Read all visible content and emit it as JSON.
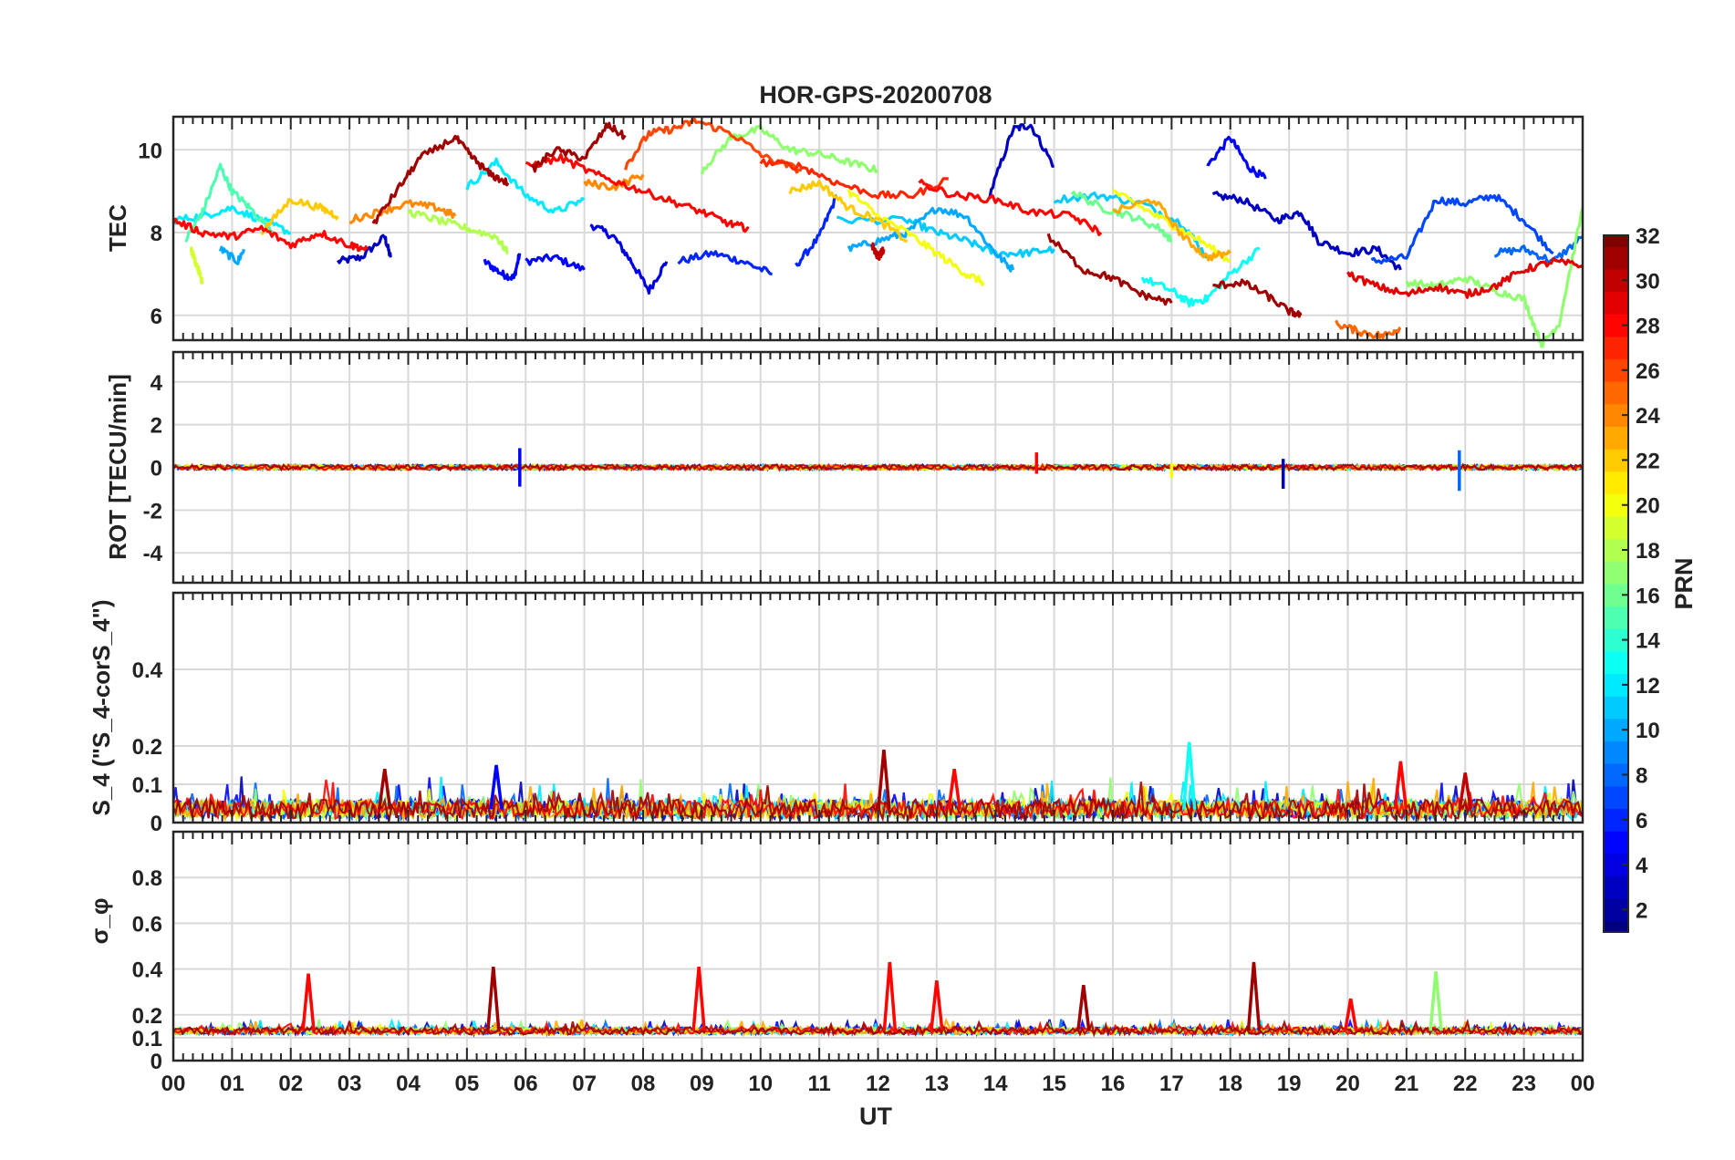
{
  "figure": {
    "title": "HOR-GPS-20200708",
    "xlabel": "UT",
    "x_ticks": [
      "00",
      "01",
      "02",
      "03",
      "04",
      "05",
      "06",
      "07",
      "08",
      "09",
      "10",
      "11",
      "12",
      "13",
      "14",
      "15",
      "16",
      "17",
      "18",
      "19",
      "20",
      "21",
      "22",
      "23",
      "00"
    ],
    "colorbar": {
      "label": "PRN",
      "ticks": [
        "2",
        "4",
        "6",
        "8",
        "10",
        "12",
        "14",
        "16",
        "18",
        "20",
        "22",
        "24",
        "26",
        "28",
        "30",
        "32"
      ],
      "range": [
        1,
        32
      ],
      "colormap": "jet"
    }
  },
  "chart_data": [
    {
      "type": "line",
      "panel": "TEC",
      "ylabel": "TEC",
      "ylim": [
        5.4,
        10.8
      ],
      "y_ticks": [
        "6",
        "8",
        "10"
      ],
      "xlim": [
        0,
        24
      ],
      "grid": true,
      "series": [
        {
          "prn": 3,
          "x": [
            2.8,
            3.2,
            3.6,
            3.7
          ],
          "y": [
            7.3,
            7.4,
            7.9,
            7.4
          ]
        },
        {
          "prn": 5,
          "x": [
            5.3,
            5.6,
            5.8,
            5.9
          ],
          "y": [
            7.3,
            7.0,
            6.9,
            7.5
          ]
        },
        {
          "prn": 5,
          "x": [
            6.0,
            6.5,
            7.0
          ],
          "y": [
            7.3,
            7.4,
            7.1
          ]
        },
        {
          "prn": 4,
          "x": [
            7.1,
            7.5,
            7.8,
            8.1,
            8.4
          ],
          "y": [
            8.2,
            7.9,
            7.3,
            6.6,
            7.3
          ]
        },
        {
          "prn": 6,
          "x": [
            8.6,
            9.2,
            9.7,
            10.2
          ],
          "y": [
            7.3,
            7.5,
            7.3,
            7.0
          ]
        },
        {
          "prn": 6,
          "x": [
            10.6,
            11.0,
            11.3
          ],
          "y": [
            7.2,
            7.9,
            8.9
          ]
        },
        {
          "prn": 3,
          "x": [
            13.9,
            14.3,
            14.6,
            15.0
          ],
          "y": [
            8.9,
            10.5,
            10.6,
            9.6
          ]
        },
        {
          "prn": 5,
          "x": [
            17.6,
            18.0,
            18.3,
            18.6
          ],
          "y": [
            9.6,
            10.3,
            9.6,
            9.3
          ]
        },
        {
          "prn": 3,
          "x": [
            17.7,
            18.2,
            18.8,
            19.2,
            19.5,
            20.0,
            20.5,
            20.9
          ],
          "y": [
            8.9,
            8.8,
            8.3,
            8.5,
            7.8,
            7.5,
            7.6,
            7.1
          ]
        },
        {
          "prn": 7,
          "x": [
            20.4,
            21.0,
            21.5,
            22.0,
            22.5,
            23.0,
            23.5
          ],
          "y": [
            7.3,
            7.4,
            8.8,
            8.7,
            8.9,
            8.3,
            7.5
          ]
        },
        {
          "prn": 8,
          "x": [
            22.5,
            23.0,
            23.5,
            24.0
          ],
          "y": [
            7.5,
            7.6,
            7.3,
            7.9
          ]
        },
        {
          "prn": 10,
          "x": [
            0.8,
            1.1,
            1.2
          ],
          "y": [
            7.6,
            7.3,
            7.6
          ]
        },
        {
          "prn": 11,
          "x": [
            11.3,
            12.5,
            13.0,
            13.5,
            14.0,
            14.5,
            15.0
          ],
          "y": [
            8.3,
            8.3,
            8.0,
            7.8,
            7.5,
            7.5,
            7.6
          ]
        },
        {
          "prn": 10,
          "x": [
            11.5,
            12.0,
            12.5,
            13.0,
            13.5,
            14.0,
            14.3
          ],
          "y": [
            7.6,
            7.8,
            8.0,
            8.6,
            8.4,
            7.5,
            7.1
          ]
        },
        {
          "prn": 11,
          "x": [
            15.0,
            15.8,
            16.5,
            17.2,
            17.6
          ],
          "y": [
            8.8,
            8.9,
            8.7,
            8.2,
            7.4
          ]
        },
        {
          "prn": 12,
          "x": [
            5.0,
            5.5,
            6.0,
            6.5,
            7.0
          ],
          "y": [
            9.1,
            9.7,
            8.9,
            8.5,
            8.8
          ]
        },
        {
          "prn": 12,
          "x": [
            0.0,
            0.5,
            1.0,
            1.5,
            2.0
          ],
          "y": [
            8.3,
            8.4,
            8.6,
            8.3,
            8.0
          ]
        },
        {
          "prn": 13,
          "x": [
            16.5,
            17.0,
            17.3,
            17.6,
            18.0,
            18.5
          ],
          "y": [
            6.9,
            6.6,
            6.3,
            6.4,
            7.0,
            7.6
          ]
        },
        {
          "prn": 15,
          "x": [
            0.2,
            0.5,
            0.8,
            1.0,
            1.3,
            1.7
          ],
          "y": [
            7.8,
            8.5,
            9.6,
            9.0,
            8.6,
            8.0
          ]
        },
        {
          "prn": 17,
          "x": [
            9.0,
            9.5,
            10.0,
            10.5,
            11.0,
            11.5,
            12.0
          ],
          "y": [
            9.5,
            10.3,
            10.5,
            10.0,
            9.9,
            9.7,
            9.5
          ]
        },
        {
          "prn": 16,
          "x": [
            15.3,
            15.8,
            16.3,
            16.8,
            17.0
          ],
          "y": [
            9.0,
            8.6,
            8.4,
            8.1,
            7.8
          ]
        },
        {
          "prn": 17,
          "x": [
            21.0,
            21.5,
            22.0,
            22.5,
            23.0,
            23.3,
            23.6,
            24.0
          ],
          "y": [
            6.8,
            6.7,
            6.9,
            6.6,
            6.4,
            5.3,
            5.8,
            8.6
          ]
        },
        {
          "prn": 18,
          "x": [
            4.0,
            4.5,
            5.0,
            5.5,
            5.7
          ],
          "y": [
            8.5,
            8.3,
            8.1,
            7.9,
            7.5
          ]
        },
        {
          "prn": 19,
          "x": [
            0.3,
            0.4,
            0.5
          ],
          "y": [
            7.6,
            7.2,
            6.8
          ]
        },
        {
          "prn": 20,
          "x": [
            11.5,
            12.0,
            12.5,
            13.0,
            13.5,
            13.8
          ],
          "y": [
            9.0,
            8.4,
            8.0,
            7.5,
            7.0,
            6.8
          ]
        },
        {
          "prn": 20,
          "x": [
            16.0,
            16.5,
            17.0,
            17.5,
            18.0
          ],
          "y": [
            9.0,
            8.6,
            8.2,
            7.8,
            7.3
          ]
        },
        {
          "prn": 22,
          "x": [
            1.5,
            2.0,
            2.5,
            2.8
          ],
          "y": [
            8.0,
            8.8,
            8.6,
            8.4
          ]
        },
        {
          "prn": 22,
          "x": [
            10.5,
            11.0,
            11.5,
            12.0,
            12.5
          ],
          "y": [
            9.0,
            9.2,
            8.6,
            8.3,
            7.8
          ]
        },
        {
          "prn": 23,
          "x": [
            16.0,
            16.7,
            17.2,
            17.6,
            18.0
          ],
          "y": [
            8.5,
            8.8,
            7.9,
            7.4,
            7.5
          ]
        },
        {
          "prn": 24,
          "x": [
            3.0,
            3.5,
            4.0,
            4.5,
            4.8
          ],
          "y": [
            8.3,
            8.5,
            8.7,
            8.6,
            8.4
          ]
        },
        {
          "prn": 24,
          "x": [
            7.0,
            7.5,
            8.0
          ],
          "y": [
            9.2,
            9.1,
            9.4
          ]
        },
        {
          "prn": 25,
          "x": [
            19.8,
            20.2,
            20.6,
            20.9
          ],
          "y": [
            5.8,
            5.6,
            5.5,
            5.7
          ]
        },
        {
          "prn": 26,
          "x": [
            7.7,
            8.1,
            8.5,
            8.9,
            9.5,
            10.1,
            10.7
          ],
          "y": [
            9.6,
            10.4,
            10.5,
            10.7,
            10.4,
            9.8,
            9.5
          ]
        },
        {
          "prn": 27,
          "x": [
            10.0,
            10.7,
            11.3,
            12.0,
            12.6,
            13.2
          ],
          "y": [
            9.7,
            9.6,
            9.2,
            8.9,
            8.9,
            9.3
          ]
        },
        {
          "prn": 28,
          "x": [
            0.0,
            0.5,
            1.0,
            1.5,
            2.0,
            2.5,
            3.0,
            3.3
          ],
          "y": [
            8.3,
            8.0,
            7.9,
            8.1,
            7.7,
            8.0,
            7.7,
            7.6
          ]
        },
        {
          "prn": 28,
          "x": [
            6.0,
            6.6,
            7.2,
            7.8,
            8.4,
            9.0,
            9.5,
            9.8
          ],
          "y": [
            9.6,
            9.8,
            9.4,
            9.1,
            8.8,
            8.5,
            8.2,
            8.1
          ]
        },
        {
          "prn": 28,
          "x": [
            12.7,
            13.3,
            14.0,
            14.6,
            15.3,
            15.8
          ],
          "y": [
            9.2,
            8.9,
            8.8,
            8.5,
            8.4,
            8.0
          ]
        },
        {
          "prn": 29,
          "x": [
            20.0,
            20.5,
            21.0,
            21.5,
            22.0,
            22.5,
            23.0,
            23.5,
            24.0
          ],
          "y": [
            7.0,
            6.7,
            6.5,
            6.7,
            6.5,
            6.7,
            7.1,
            7.3,
            7.2
          ]
        },
        {
          "prn": 30,
          "x": [
            11.9,
            12.0,
            12.1
          ],
          "y": [
            7.7,
            7.4,
            7.6
          ]
        },
        {
          "prn": 31,
          "x": [
            6.1,
            6.5,
            7.0,
            7.4,
            7.7
          ],
          "y": [
            9.5,
            10.0,
            9.8,
            10.6,
            10.3
          ]
        },
        {
          "prn": 31,
          "x": [
            3.4,
            3.8,
            4.2,
            4.8,
            5.1,
            5.4,
            5.7
          ],
          "y": [
            8.2,
            9.0,
            9.8,
            10.3,
            9.8,
            9.4,
            9.2
          ]
        },
        {
          "prn": 31,
          "x": [
            14.9,
            15.5,
            16.0,
            16.5,
            17.0
          ],
          "y": [
            7.9,
            7.1,
            6.9,
            6.5,
            6.3
          ]
        },
        {
          "prn": 31,
          "x": [
            17.7,
            18.2,
            18.6,
            19.0,
            19.2
          ],
          "y": [
            6.7,
            6.8,
            6.5,
            6.1,
            6.0
          ]
        }
      ]
    },
    {
      "type": "line",
      "panel": "ROT",
      "ylabel": "ROT [TECU/min]",
      "ylim": [
        -5.4,
        5.4
      ],
      "y_ticks": [
        "-4",
        "-2",
        "0",
        "2",
        "4"
      ],
      "xlim": [
        0,
        24
      ],
      "grid": true,
      "spikes": [
        {
          "prn": 5,
          "x": 5.9,
          "y": [
            -0.9,
            0.9
          ]
        },
        {
          "prn": 3,
          "x": 18.9,
          "y": [
            -1.0,
            0.4
          ]
        },
        {
          "prn": 8,
          "x": 21.9,
          "y": [
            -1.1,
            0.8
          ]
        },
        {
          "prn": 28,
          "x": 14.7,
          "y": [
            -0.3,
            0.7
          ]
        },
        {
          "prn": 20,
          "x": 17.0,
          "y": [
            -0.5,
            0.2
          ]
        }
      ]
    },
    {
      "type": "line",
      "panel": "S4",
      "ylabel": "S_4 (\"S_4-corS_4\")",
      "ylim": [
        0,
        0.6
      ],
      "y_ticks": [
        "0",
        "0.1",
        "0.2",
        "0.4"
      ],
      "xlim": [
        0,
        24
      ],
      "grid": true,
      "peaks": [
        {
          "prn": 31,
          "x": 3.6,
          "y": 0.14
        },
        {
          "prn": 5,
          "x": 5.5,
          "y": 0.15
        },
        {
          "prn": 31,
          "x": 12.1,
          "y": 0.19
        },
        {
          "prn": 28,
          "x": 13.3,
          "y": 0.14
        },
        {
          "prn": 13,
          "x": 17.3,
          "y": 0.21
        },
        {
          "prn": 28,
          "x": 20.9,
          "y": 0.16
        },
        {
          "prn": 30,
          "x": 22.0,
          "y": 0.13
        }
      ]
    },
    {
      "type": "line",
      "panel": "sigma_phi",
      "ylabel": "σ_φ",
      "ylim": [
        0,
        1.0
      ],
      "y_ticks": [
        "0",
        "0.1",
        "0.2",
        "0.4",
        "0.6",
        "0.8"
      ],
      "xlim": [
        0,
        24
      ],
      "grid": true,
      "peaks": [
        {
          "prn": 28,
          "x": 2.3,
          "y": 0.38
        },
        {
          "prn": 31,
          "x": 5.45,
          "y": 0.41
        },
        {
          "prn": 28,
          "x": 8.95,
          "y": 0.41
        },
        {
          "prn": 28,
          "x": 12.2,
          "y": 0.43
        },
        {
          "prn": 28,
          "x": 13.0,
          "y": 0.35
        },
        {
          "prn": 31,
          "x": 15.5,
          "y": 0.33
        },
        {
          "prn": 31,
          "x": 18.4,
          "y": 0.43
        },
        {
          "prn": 28,
          "x": 20.05,
          "y": 0.27
        },
        {
          "prn": 17,
          "x": 21.5,
          "y": 0.39
        }
      ]
    }
  ]
}
